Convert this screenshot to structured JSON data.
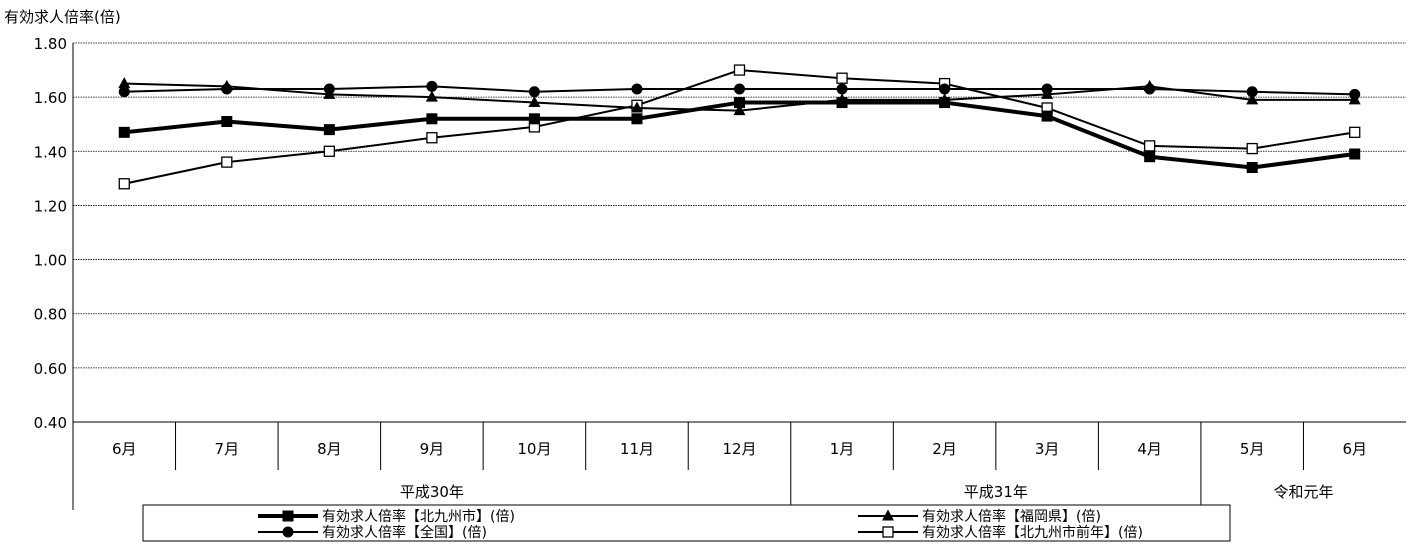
{
  "chart_data": {
    "type": "line",
    "ylabel": "有効求人倍率(倍)",
    "ylim": [
      0.4,
      1.8
    ],
    "yticks": [
      "0.40",
      "0.60",
      "0.80",
      "1.00",
      "1.20",
      "1.40",
      "1.60",
      "1.80"
    ],
    "grid": "horizontal",
    "categories": [
      "6月",
      "7月",
      "8月",
      "9月",
      "10月",
      "11月",
      "12月",
      "1月",
      "2月",
      "3月",
      "4月",
      "5月",
      "6月"
    ],
    "year_groups": [
      {
        "label": "平成30年",
        "span": 7
      },
      {
        "label": "平成31年",
        "span": 4
      },
      {
        "label": "令和元年",
        "span": 2
      }
    ],
    "legend_placement": "bottom",
    "series": [
      {
        "name": "有効求人倍率【北九州市】(倍)",
        "marker": "square-filled",
        "stroke_weight": "bold",
        "values": [
          1.47,
          1.51,
          1.48,
          1.52,
          1.52,
          1.52,
          1.58,
          1.58,
          1.58,
          1.53,
          1.38,
          1.34,
          1.39
        ]
      },
      {
        "name": "有効求人倍率【福岡県】(倍)",
        "marker": "triangle-filled",
        "stroke_weight": "normal",
        "values": [
          1.65,
          1.64,
          1.61,
          1.6,
          1.58,
          1.56,
          1.55,
          1.59,
          1.59,
          1.61,
          1.64,
          1.59,
          1.59
        ]
      },
      {
        "name": "有効求人倍率【全国】(倍)",
        "marker": "circle-filled",
        "stroke_weight": "normal",
        "values": [
          1.62,
          1.63,
          1.63,
          1.64,
          1.62,
          1.63,
          1.63,
          1.63,
          1.63,
          1.63,
          1.63,
          1.62,
          1.61
        ]
      },
      {
        "name": "有効求人倍率【北九州市前年】(倍)",
        "marker": "square-open",
        "stroke_weight": "normal",
        "values": [
          1.28,
          1.36,
          1.4,
          1.45,
          1.49,
          1.57,
          1.7,
          1.67,
          1.65,
          1.56,
          1.42,
          1.41,
          1.47
        ]
      }
    ]
  }
}
